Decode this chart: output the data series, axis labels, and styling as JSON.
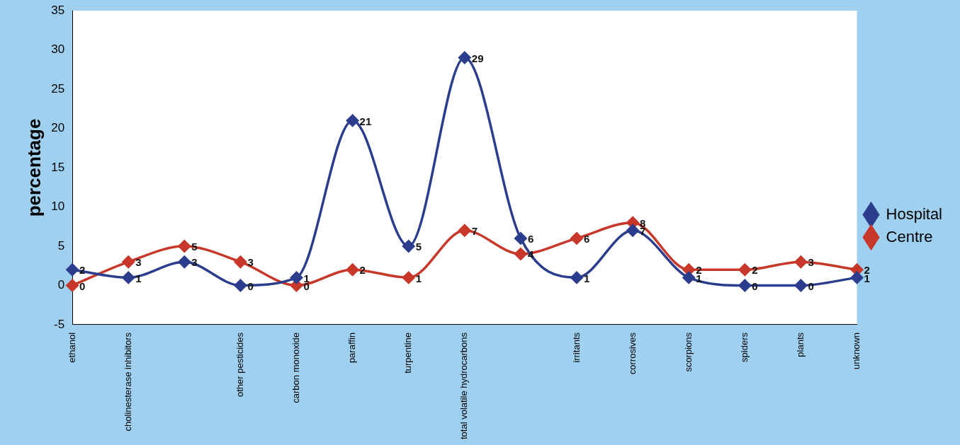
{
  "chart_data": {
    "type": "line",
    "ylabel": "percentage",
    "categories": [
      "ethanol",
      "cholinesterase inhibitors",
      null,
      "other pesticides",
      "carbon monoxide",
      "paraffin",
      "turpentine",
      "total volatile hydrocarbons",
      null,
      "irritants",
      "corrosives",
      "scorpions",
      "spiders",
      "plants",
      "unknown"
    ],
    "series": [
      {
        "name": "Hospital",
        "color": "#2b3d8c",
        "values": [
          2,
          1,
          3,
          0,
          1,
          21,
          5,
          29,
          6,
          1,
          7,
          1,
          0,
          0,
          1
        ]
      },
      {
        "name": "Centre",
        "color": "#c8382a",
        "values": [
          0,
          3,
          5,
          3,
          0,
          2,
          1,
          7,
          4,
          6,
          8,
          2,
          2,
          3,
          2
        ]
      }
    ],
    "ylim": [
      -5,
      35
    ],
    "yticks": [
      -5,
      0,
      5,
      10,
      15,
      20,
      25,
      30,
      35
    ],
    "grid": false,
    "legend": "right",
    "marker": "diamond",
    "data_labels": true
  }
}
